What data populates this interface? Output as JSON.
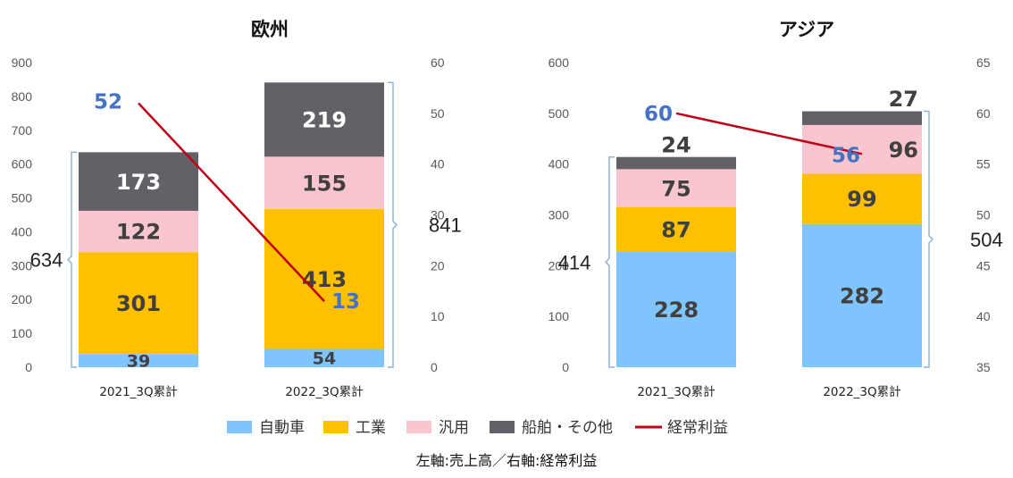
{
  "chart_data": [
    {
      "type": "bar",
      "stacked": true,
      "title": "欧州",
      "categories": [
        "2021_3Q累計",
        "2022_3Q累計"
      ],
      "left_axis": {
        "min": 0,
        "max": 900,
        "ticks": [
          "0",
          "100",
          "200",
          "300",
          "400",
          "500",
          "600",
          "700",
          "800",
          "900"
        ]
      },
      "right_axis": {
        "min": 0,
        "max": 60,
        "ticks": [
          "0",
          "10",
          "20",
          "30",
          "40",
          "50",
          "60"
        ]
      },
      "series": [
        {
          "name": "自動車",
          "values": [
            39,
            54
          ]
        },
        {
          "name": "工業",
          "values": [
            301,
            413
          ]
        },
        {
          "name": "汎用",
          "values": [
            122,
            155
          ]
        },
        {
          "name": "船舶・その他",
          "values": [
            173,
            219
          ]
        }
      ],
      "totals": [
        "634",
        "841"
      ],
      "line": {
        "name": "経常利益",
        "values": [
          52,
          13
        ]
      }
    },
    {
      "type": "bar",
      "stacked": true,
      "title": "アジア",
      "categories": [
        "2021_3Q累計",
        "2022_3Q累計"
      ],
      "left_axis": {
        "min": 0,
        "max": 600,
        "ticks": [
          "0",
          "100",
          "200",
          "300",
          "400",
          "500",
          "600"
        ]
      },
      "right_axis": {
        "min": 35,
        "max": 65,
        "ticks": [
          "35",
          "40",
          "45",
          "50",
          "55",
          "60",
          "65"
        ]
      },
      "series": [
        {
          "name": "自動車",
          "values": [
            228,
            282
          ]
        },
        {
          "name": "工業",
          "values": [
            87,
            99
          ]
        },
        {
          "name": "汎用",
          "values": [
            75,
            96
          ]
        },
        {
          "name": "船舶・その他",
          "values": [
            24,
            27
          ]
        }
      ],
      "totals": [
        "414",
        "504"
      ],
      "line": {
        "name": "経常利益",
        "values": [
          60,
          56
        ]
      }
    }
  ],
  "colors": {
    "自動車": "#7fc4fc",
    "工業": "#ffc000",
    "汎用": "#f9c6d0",
    "船舶・その他": "#616167",
    "経常利益": "#c00016",
    "line_label": "#4472c4",
    "bracket": "#8db3d6"
  },
  "legend": [
    "自動車",
    "工業",
    "汎用",
    "船舶・その他",
    "経常利益"
  ],
  "footnote": "左軸:売上高／右軸:経常利益"
}
